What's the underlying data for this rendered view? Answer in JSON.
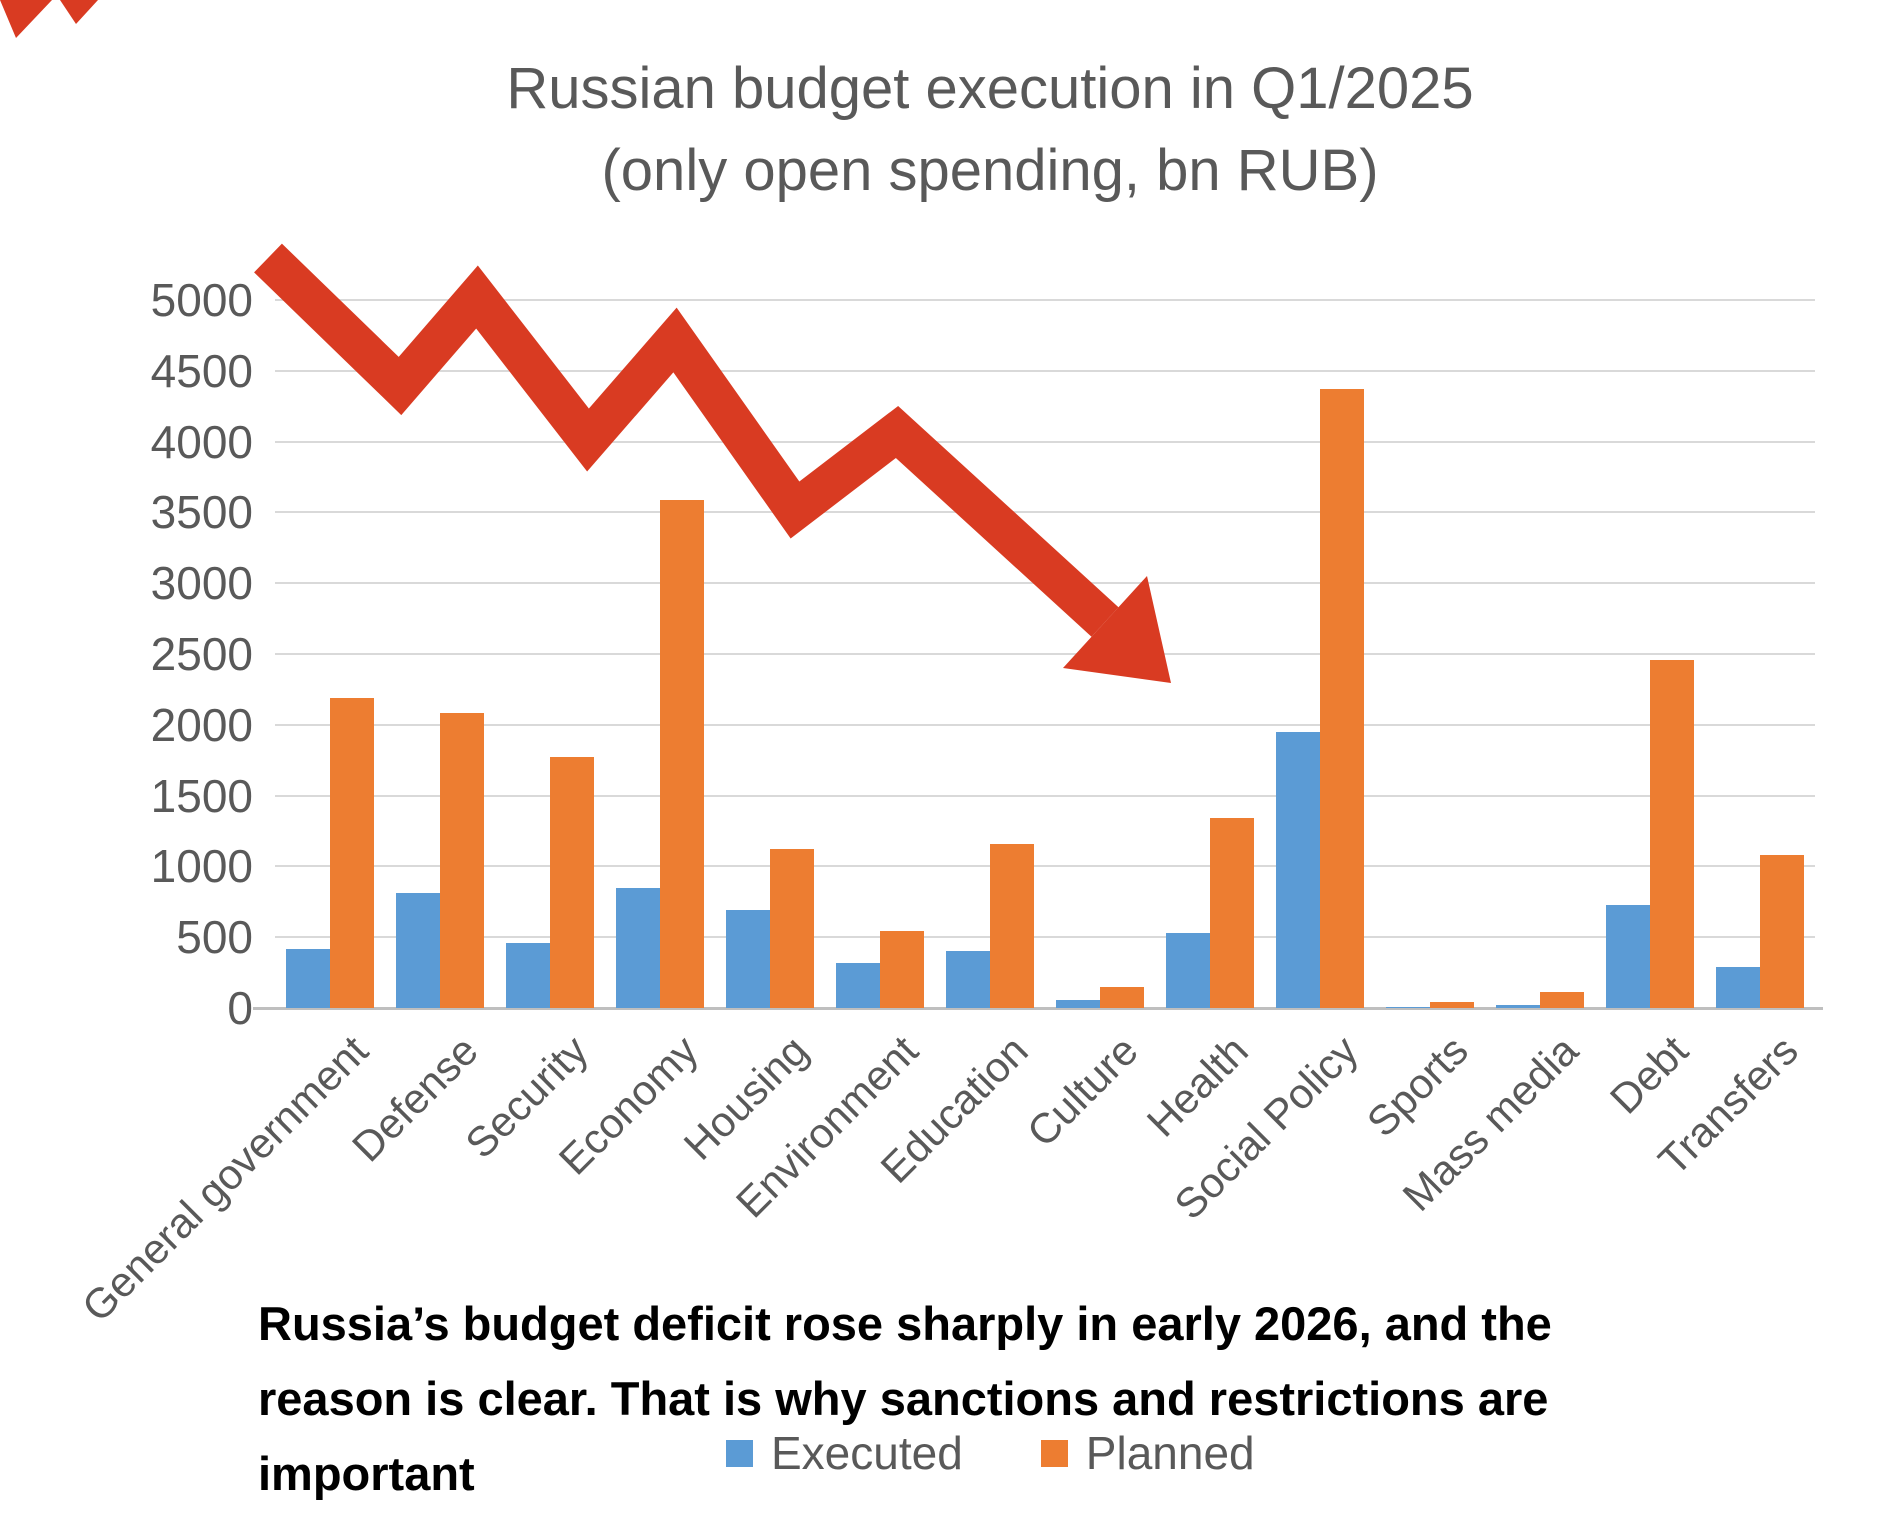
{
  "title": {
    "line1": "Russian budget execution in Q1/2025",
    "line2": "(only open spending, bn RUB)"
  },
  "caption": {
    "line1": "Russia’s budget deficit rose sharply in early 2026, and the",
    "line2": "reason is clear. That is why sanctions and restrictions are",
    "line3": "important"
  },
  "legend": [
    {
      "label": "Executed",
      "color": "#5B9BD5"
    },
    {
      "label": "Planned",
      "color": "#ED7D31"
    }
  ],
  "colors": {
    "executed": "#5B9BD5",
    "planned": "#ED7D31",
    "arrow": "#D93B22",
    "grid": "#D9D9D9",
    "axis": "#BFBFBF",
    "text": "#595959",
    "caption": "#000000",
    "background": "#FFFFFF"
  },
  "chart_data": {
    "type": "bar",
    "title": "Russian budget execution in Q1/2025 (only open spending, bn RUB)",
    "xlabel": "",
    "ylabel": "",
    "ylim": [
      0,
      5000
    ],
    "y_ticks": [
      0,
      500,
      1000,
      1500,
      2000,
      2500,
      3000,
      3500,
      4000,
      4500,
      5000
    ],
    "grid": true,
    "legend_position": "bottom",
    "annotation": "red zigzag arrow indicating decline, pointing down-right across the plot",
    "categories": [
      "General government",
      "Defense",
      "Security",
      "Economy",
      "Housing",
      "Environment",
      "Education",
      "Culture",
      "Health",
      "Social Policy",
      "Sports",
      "Mass media",
      "Debt",
      "Transfers"
    ],
    "series": [
      {
        "name": "Executed",
        "color": "#5B9BD5",
        "values": [
          420,
          810,
          460,
          850,
          690,
          320,
          400,
          60,
          530,
          1950,
          5,
          20,
          730,
          290
        ]
      },
      {
        "name": "Planned",
        "color": "#ED7D31",
        "values": [
          2190,
          2080,
          1770,
          3590,
          1120,
          545,
          1160,
          150,
          1340,
          4370,
          45,
          110,
          2460,
          1080
        ]
      }
    ]
  }
}
